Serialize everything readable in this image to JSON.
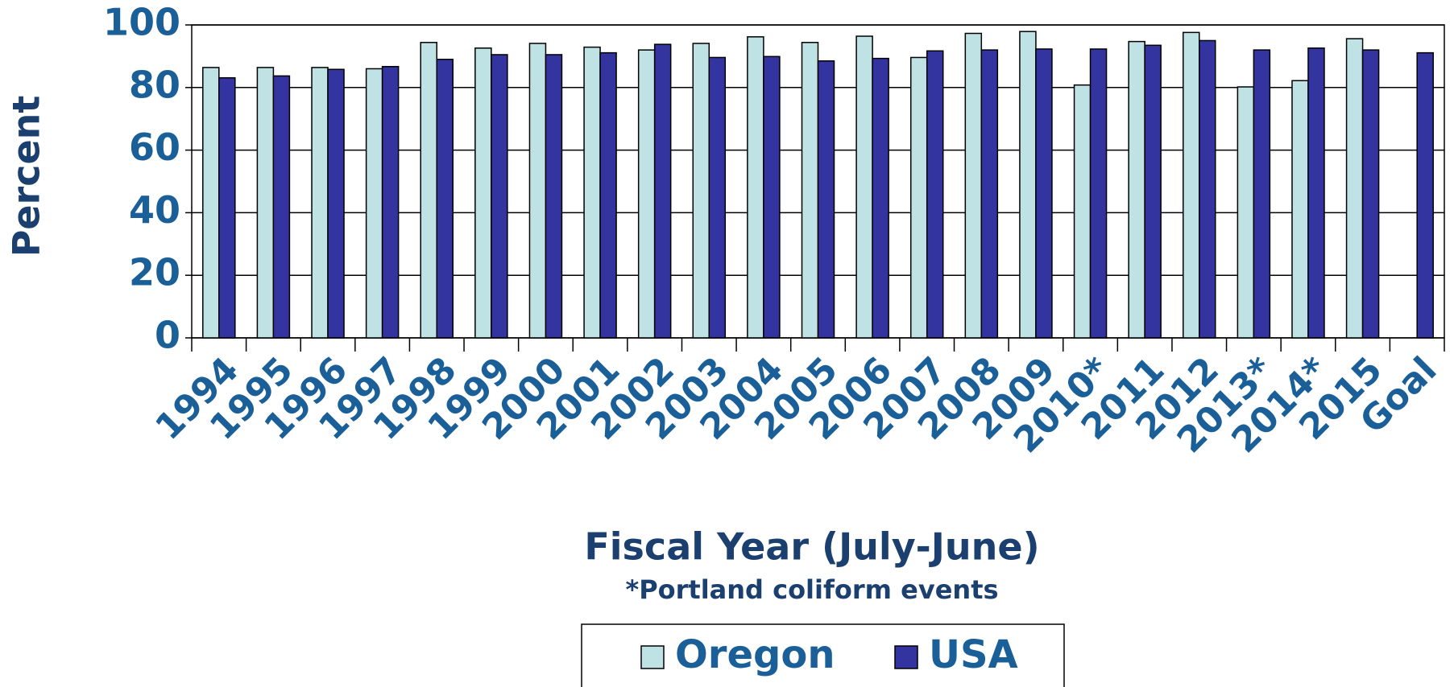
{
  "chart_data": {
    "type": "bar",
    "y_label": "Percent",
    "x_label": "Fiscal Year (July-June)",
    "note": "*Portland coliform events",
    "categories": [
      "1994",
      "1995",
      "1996",
      "1997",
      "1998",
      "1999",
      "2000",
      "2001",
      "2002",
      "2003",
      "2004",
      "2005",
      "2006",
      "2007",
      "2008",
      "2009",
      "2010*",
      "2011",
      "2012",
      "2013*",
      "2014*",
      "2015",
      "Goal"
    ],
    "series": [
      {
        "name": "Oregon",
        "color": "#bfe3e4",
        "values": [
          86.4,
          86.4,
          86.4,
          86.0,
          94.4,
          92.6,
          94.1,
          92.9,
          92.0,
          94.1,
          96.2,
          94.4,
          96.4,
          89.6,
          97.3,
          97.9,
          80.8,
          94.7,
          97.6,
          80.2,
          82.2,
          95.6,
          null
        ]
      },
      {
        "name": "USA",
        "color": "#3434a0",
        "values": [
          83.1,
          83.7,
          85.8,
          86.7,
          89.0,
          90.5,
          90.5,
          91.1,
          93.8,
          89.6,
          89.9,
          88.5,
          89.3,
          91.7,
          92.0,
          92.3,
          92.3,
          93.5,
          95.0,
          92.0,
          92.6,
          92.0,
          91.1
        ]
      }
    ],
    "ylim": [
      0,
      100
    ],
    "yticks": [
      0,
      20,
      40,
      60,
      80,
      100
    ],
    "grid": true,
    "legend": "bottom"
  }
}
